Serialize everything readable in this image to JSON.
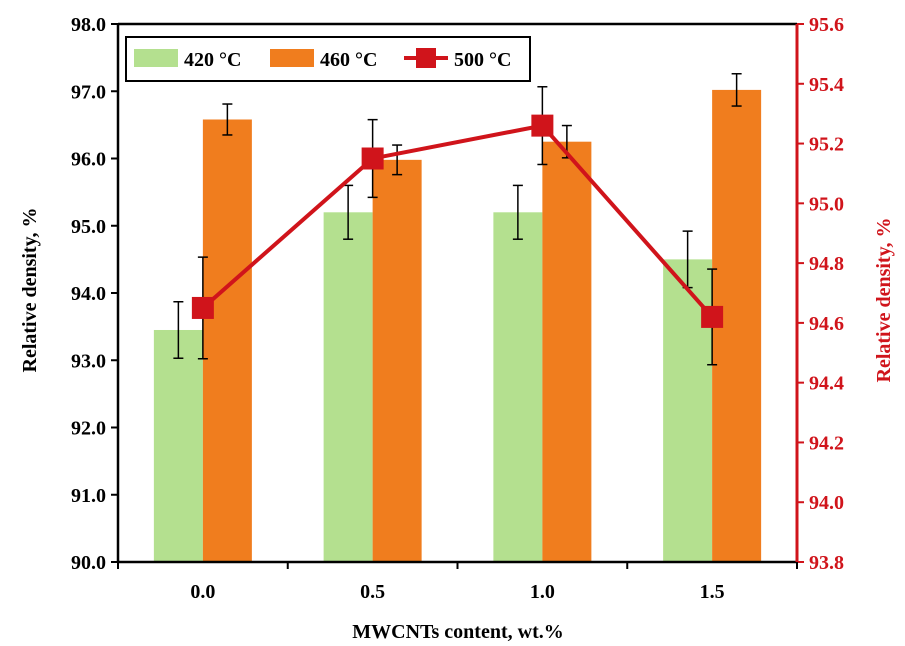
{
  "chart_data": {
    "type": "bar",
    "categories": [
      "0.0",
      "0.5",
      "1.0",
      "1.5"
    ],
    "xlabel": "MWCNTs content, wt.%",
    "ylabel_left": "Relative density, %",
    "ylabel_right": "Relative density, %",
    "ylim_left": [
      90.0,
      98.0
    ],
    "yticks_left": [
      "90.0",
      "91.0",
      "92.0",
      "93.0",
      "94.0",
      "95.0",
      "96.0",
      "97.0",
      "98.0"
    ],
    "ylim_right": [
      93.8,
      95.6
    ],
    "yticks_right": [
      "93.8",
      "94.0",
      "94.2",
      "94.4",
      "94.6",
      "94.8",
      "95.0",
      "95.2",
      "95.4",
      "95.6"
    ],
    "legend_position": "top-left",
    "grid": false,
    "series": [
      {
        "name": "420 °C",
        "kind": "bar",
        "axis": "left",
        "color": "#b4e08f",
        "values": [
          93.45,
          95.2,
          95.2,
          94.5
        ],
        "errors": [
          0.42,
          0.4,
          0.4,
          0.42
        ]
      },
      {
        "name": "460 °C",
        "kind": "bar",
        "axis": "left",
        "color": "#f07d1e",
        "values": [
          96.58,
          95.98,
          96.25,
          97.02
        ],
        "errors": [
          0.23,
          0.22,
          0.24,
          0.24
        ]
      },
      {
        "name": "500 °C",
        "kind": "line",
        "axis": "right",
        "color": "#d0141b",
        "values": [
          94.65,
          95.15,
          95.26,
          94.62
        ],
        "errors": [
          0.17,
          0.13,
          0.13,
          0.16
        ]
      }
    ],
    "colors": {
      "axis_right": "#d0141b",
      "axis": "#000000"
    }
  }
}
